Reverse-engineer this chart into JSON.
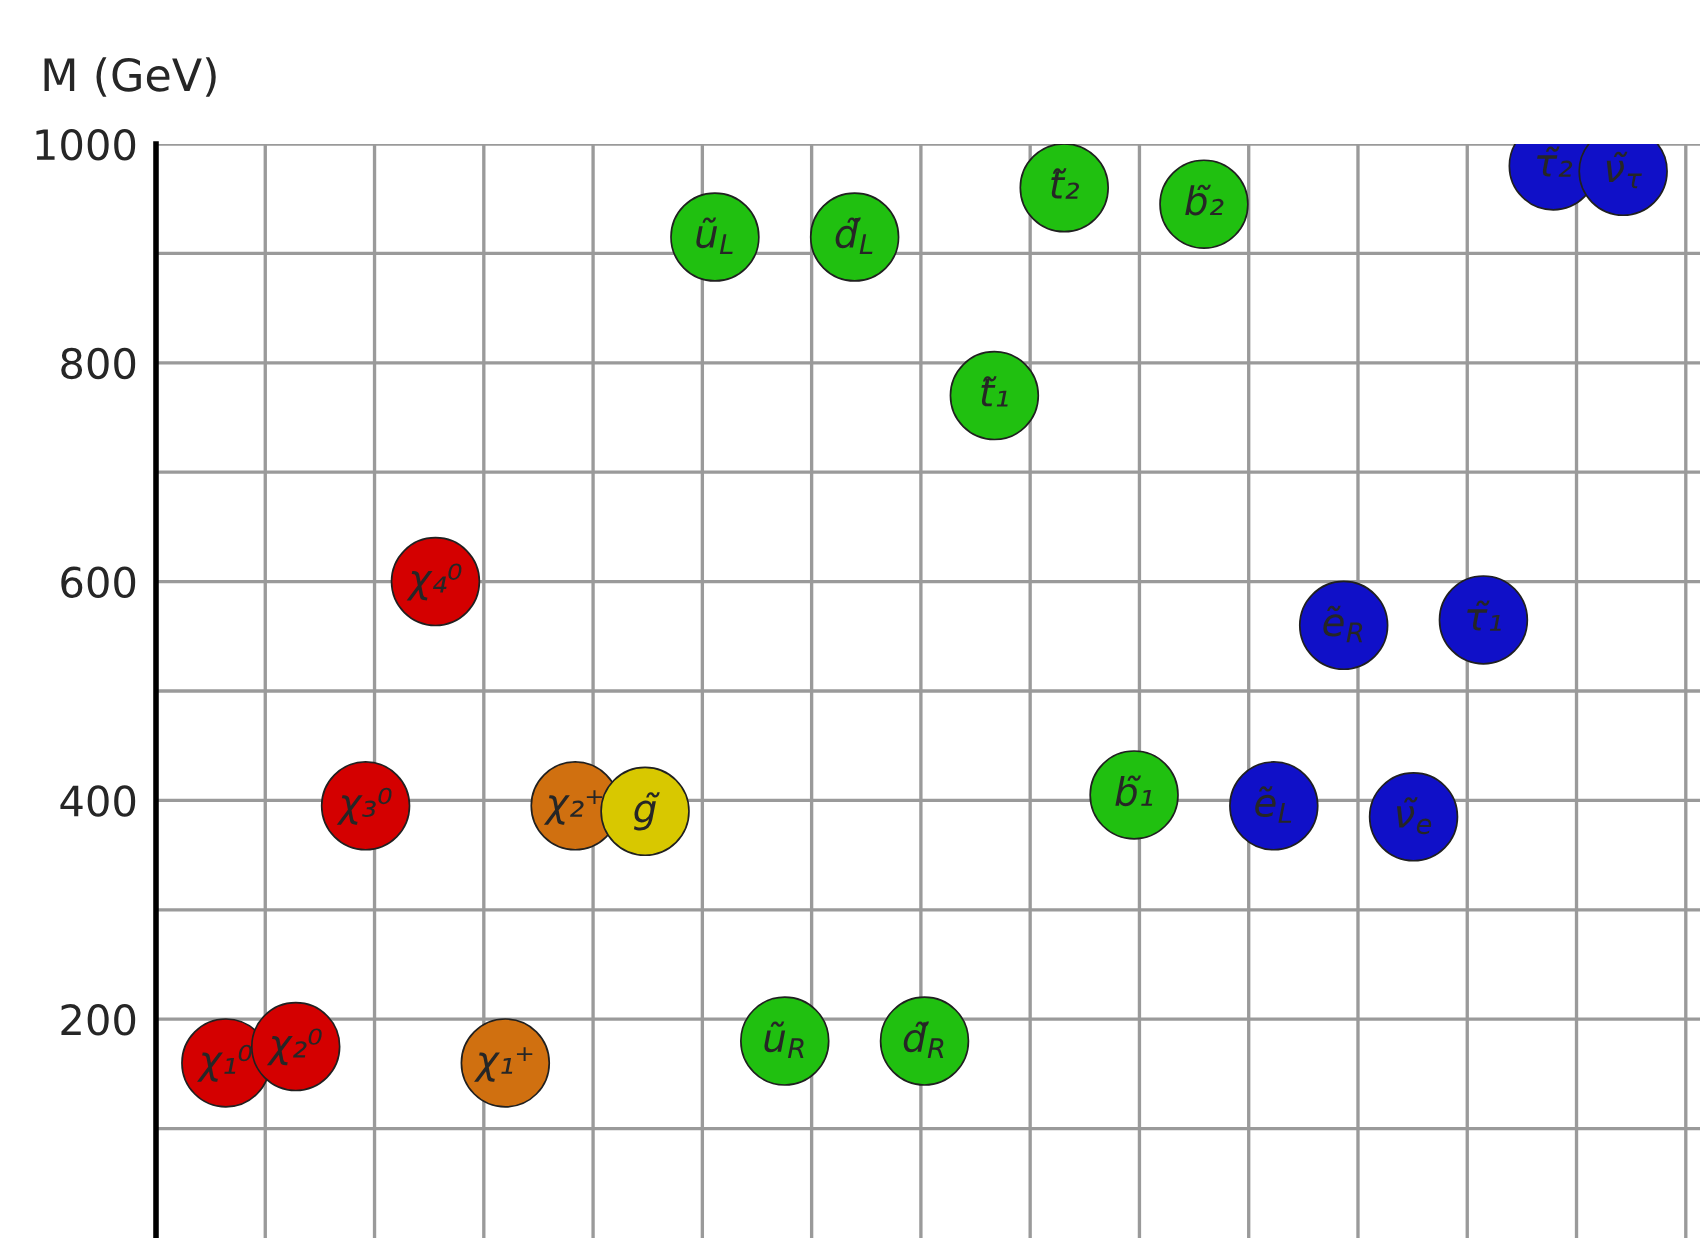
{
  "chart_data": {
    "type": "scatter",
    "ylabel": "M (GeV)",
    "categories": [
      "χ₁⁰",
      "χ₂⁰",
      "χ₃⁰",
      "χ₄⁰",
      "χ₁⁺",
      "χ₂⁺",
      "g̃",
      "ũ$_{L}$",
      "ũ$_{R}$",
      "d̃$_{L}$",
      "d̃$_{R}$",
      "t̃₁",
      "t̃₂",
      "b̃₁",
      "b̃₂",
      "ẽ$_{L}$",
      "ẽ$_{R}$",
      "ν̃$_{e}$",
      "τ̃₁",
      "τ̃₂",
      "ν̃$_{τ}$"
    ],
    "ylim": [
      0,
      1000
    ],
    "yticks": [
      {
        "value": 100,
        "label": null
      },
      200,
      {
        "value": 300,
        "label": null
      },
      400,
      {
        "value": 500,
        "label": null
      },
      600,
      {
        "value": 700,
        "label": null
      },
      800,
      {
        "value": 900,
        "label": null
      },
      1000
    ],
    "grid": true,
    "marker": "circle",
    "values": [
      160,
      175,
      395,
      600,
      160,
      395,
      390,
      915,
      180,
      915,
      180,
      770,
      960,
      405,
      945,
      395,
      560,
      385,
      565,
      980,
      975
    ],
    "colors": [
      "#d40000",
      "#d40000",
      "#d40000",
      "#d40000",
      "#d07010",
      "#d07010",
      "#d8c800",
      "#20c010",
      "#20c010",
      "#20c010",
      "#20c010",
      "#20c010",
      "#20c010",
      "#20c010",
      "#20c010",
      "#1010c8",
      "#1010c8",
      "#1010c8",
      "#1010c8",
      "#1010c8",
      "#1010c8"
    ]
  }
}
